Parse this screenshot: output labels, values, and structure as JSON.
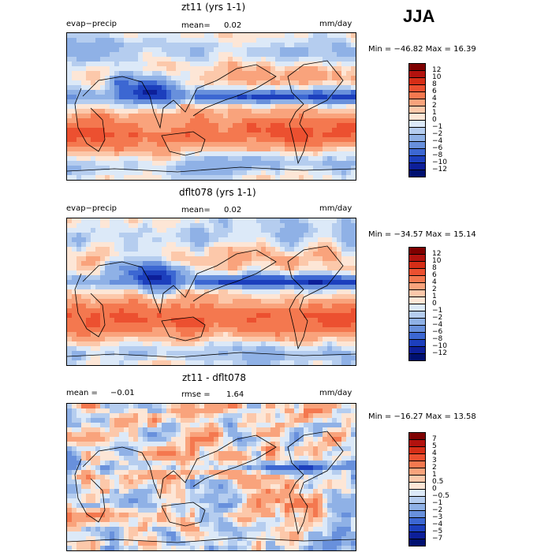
{
  "header": {
    "season": "JJA"
  },
  "panels": [
    {
      "title": "zt11 (yrs 1-1)",
      "left_label": "evap−precip",
      "mean_label": "mean=",
      "mean_value": "0.02",
      "units": "mm/day",
      "minmax_label": "Min = −46.82 Max =  16.39",
      "colorbar_levels": [
        "12",
        "10",
        "8",
        "6",
        "4",
        "2",
        "1",
        "0",
        "−1",
        "−2",
        "−4",
        "−6",
        "−8",
        "−10",
        "−12"
      ]
    },
    {
      "title": "dflt078 (yrs 1-1)",
      "left_label": "evap−precip",
      "mean_label": "mean=",
      "mean_value": "0.02",
      "units": "mm/day",
      "minmax_label": "Min = −34.57 Max =  15.14",
      "colorbar_levels": [
        "12",
        "10",
        "8",
        "6",
        "4",
        "2",
        "1",
        "0",
        "−1",
        "−2",
        "−4",
        "−6",
        "−8",
        "−10",
        "−12"
      ]
    },
    {
      "title": "zt11 - dflt078",
      "left_label": "mean =",
      "left_value": "−0.01",
      "rmse_label": "rmse =",
      "rmse_value": "1.64",
      "units": "mm/day",
      "minmax_label": "Min = −16.27 Max =  13.58",
      "colorbar_levels": [
        "7",
        "5",
        "4",
        "3",
        "2",
        "1",
        "0.5",
        "0",
        "−0.5",
        "−1",
        "−2",
        "−3",
        "−4",
        "−5",
        "−7"
      ]
    }
  ],
  "colors": {
    "scale16": [
      "#7f0000",
      "#b2120e",
      "#d62e17",
      "#ec5030",
      "#f4784f",
      "#f9a37c",
      "#fcc8aa",
      "#fde6d6",
      "#dce9f8",
      "#b5cdef",
      "#8fb1e6",
      "#6890dc",
      "#3c67d2",
      "#1c3fbd",
      "#0d1f99",
      "#001070"
    ]
  },
  "chart_data": [
    {
      "type": "heatmap",
      "title": "zt11 (yrs 1-1)",
      "variable": "evap−precip",
      "units": "mm/day",
      "mean": 0.02,
      "min": -46.82,
      "max": 16.39,
      "levels": [
        12,
        10,
        8,
        6,
        4,
        2,
        1,
        0,
        -1,
        -2,
        -4,
        -6,
        -8,
        -10,
        -12
      ]
    },
    {
      "type": "heatmap",
      "title": "dflt078 (yrs 1-1)",
      "variable": "evap−precip",
      "units": "mm/day",
      "mean": 0.02,
      "min": -34.57,
      "max": 15.14,
      "levels": [
        12,
        10,
        8,
        6,
        4,
        2,
        1,
        0,
        -1,
        -2,
        -4,
        -6,
        -8,
        -10,
        -12
      ]
    },
    {
      "type": "heatmap",
      "title": "zt11 - dflt078",
      "units": "mm/day",
      "mean": -0.01,
      "rmse": 1.64,
      "min": -16.27,
      "max": 13.58,
      "levels": [
        7,
        5,
        4,
        3,
        2,
        1,
        0.5,
        0,
        -0.5,
        -1,
        -2,
        -3,
        -4,
        -5,
        -7
      ]
    }
  ]
}
